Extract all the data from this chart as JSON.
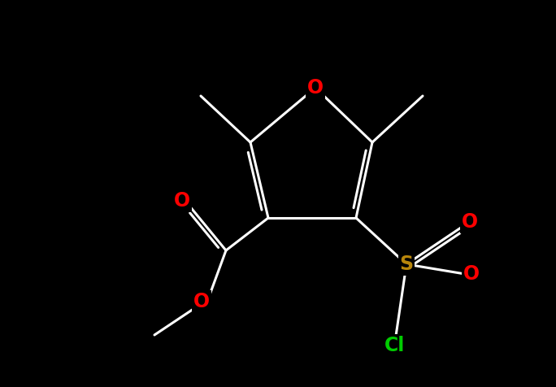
{
  "bg_color": "#000000",
  "bond_color": "#ffffff",
  "bond_width": 2.2,
  "atoms": {
    "O_red": "#ff0000",
    "S_gold": "#b8860b",
    "Cl_green": "#00cc00",
    "C_white": "#ffffff"
  },
  "figsize": [
    6.84,
    4.76
  ],
  "dpi": 100,
  "xlim": [
    0,
    684
  ],
  "ylim": [
    0,
    476
  ],
  "font_size_atom": 17
}
